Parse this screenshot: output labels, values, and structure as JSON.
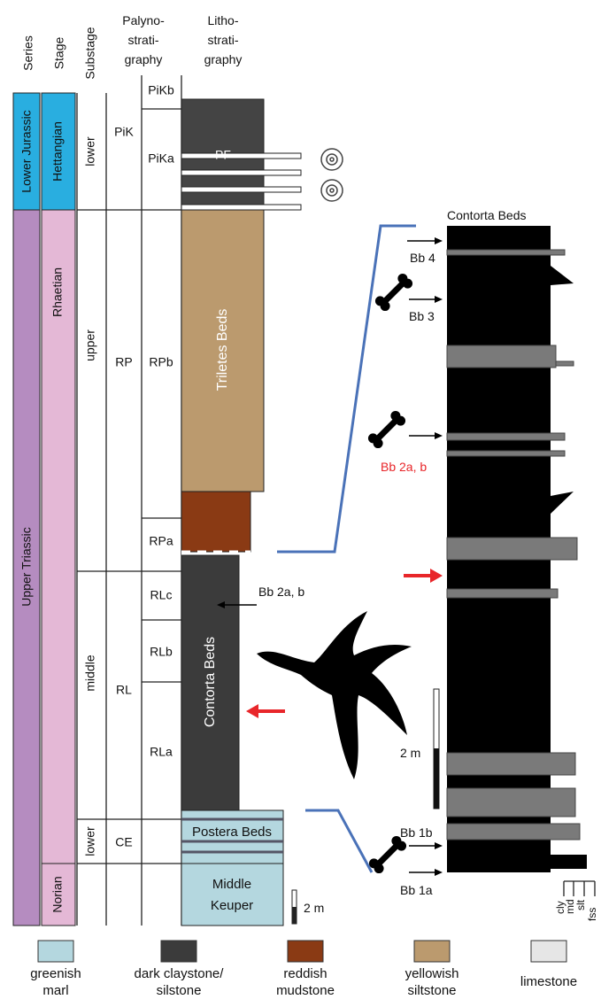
{
  "header": {
    "series": "Series",
    "stage": "Stage",
    "substage": "Substage",
    "palyno": [
      "Palyno-",
      "strati-",
      "graphy"
    ],
    "litho": [
      "Litho-",
      "strati-",
      "graphy"
    ]
  },
  "series": [
    "Lower Jurassic",
    "Upper Triassic"
  ],
  "stages": [
    "Hettangian",
    "Rhaetian",
    "Norian"
  ],
  "substages": [
    "lower",
    "upper",
    "middle",
    "lower"
  ],
  "palyno_zones": [
    "PiK",
    "RP",
    "RL",
    "CE"
  ],
  "palyno_subzones": [
    "PiKb",
    "PiKa",
    "RPb",
    "RPa",
    "RLc",
    "RLb",
    "RLa"
  ],
  "litho_units": [
    "PF",
    "Triletes Beds",
    "Contorta Beds",
    "Postera Beds",
    [
      "Middle",
      "Keuper"
    ]
  ],
  "scale": "2 m",
  "annotation": "Bb 2a, b",
  "detail": {
    "title": "Contorta Beds",
    "labels": [
      "Bb 4",
      "Bb 3",
      "Bb 2a, b",
      "Bb 1b",
      "Bb 1a"
    ],
    "scale": "2 m",
    "grain_sizes": [
      "cly",
      "md",
      "slt",
      "fss"
    ]
  },
  "legend": [
    [
      "greenish",
      "marl"
    ],
    [
      "dark claystone/",
      "silstone"
    ],
    [
      "reddish",
      "mudstone"
    ],
    [
      "yellowish",
      "siltstone"
    ],
    [
      "limestone"
    ]
  ]
}
